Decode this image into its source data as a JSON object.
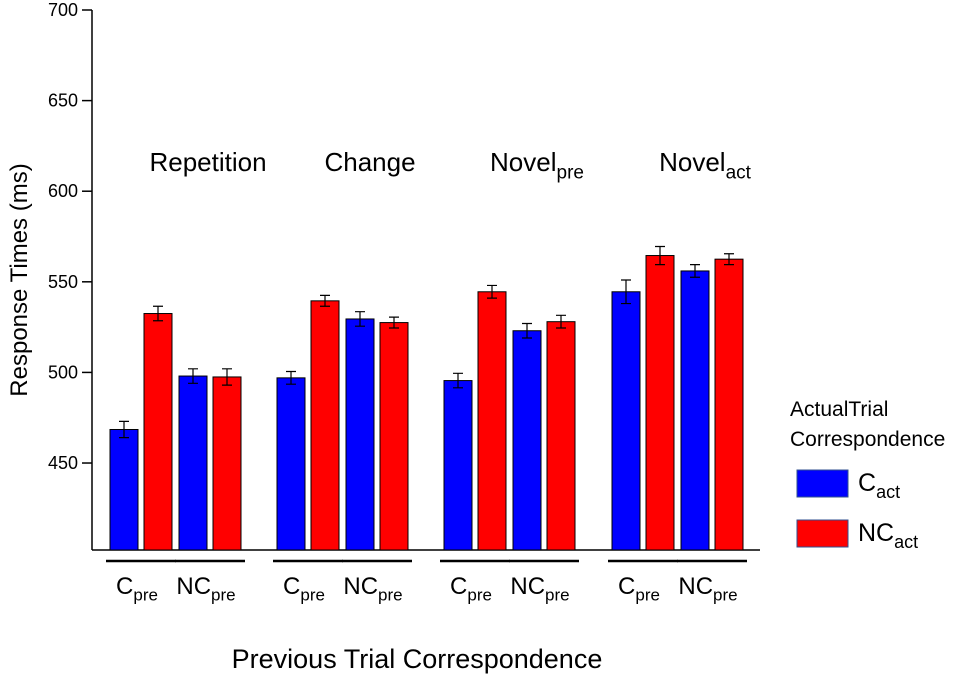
{
  "chart_data": {
    "type": "bar",
    "y_label": "Response Times (ms)",
    "x_label": "Previous Trial Correspondence",
    "group_labels": [
      {
        "text": "Repetition"
      },
      {
        "text": "Change"
      },
      {
        "text": "Novel",
        "sub": "pre"
      },
      {
        "text": "Novel",
        "sub": "act"
      }
    ],
    "categories": [
      {
        "text": "C",
        "sub": "pre"
      },
      {
        "text": "NC",
        "sub": "pre"
      },
      {
        "text": "C",
        "sub": "pre"
      },
      {
        "text": "NC",
        "sub": "pre"
      },
      {
        "text": "C",
        "sub": "pre"
      },
      {
        "text": "NC",
        "sub": "pre"
      },
      {
        "text": "C",
        "sub": "pre"
      },
      {
        "text": "NC",
        "sub": "pre"
      }
    ],
    "legend_title": [
      "ActualTrial",
      "Correspondence"
    ],
    "series": [
      {
        "name": {
          "text": "C",
          "sub": "act"
        },
        "color": "#0000ff",
        "values": [
          468.5,
          498,
          497,
          529.5,
          495.5,
          523,
          544.5,
          556
        ],
        "errors": [
          4.5,
          4,
          3.5,
          4,
          4,
          4,
          6.5,
          3.5
        ]
      },
      {
        "name": {
          "text": "NC",
          "sub": "act"
        },
        "color": "#ff0000",
        "values": [
          532.5,
          497.5,
          539.5,
          527.5,
          544.5,
          528,
          564.5,
          562.5
        ],
        "errors": [
          4,
          4.5,
          3,
          3,
          3.5,
          3.5,
          5,
          3
        ]
      }
    ],
    "ylim": [
      402,
      700
    ],
    "yticks": [
      450,
      500,
      550,
      600,
      650,
      700
    ]
  }
}
